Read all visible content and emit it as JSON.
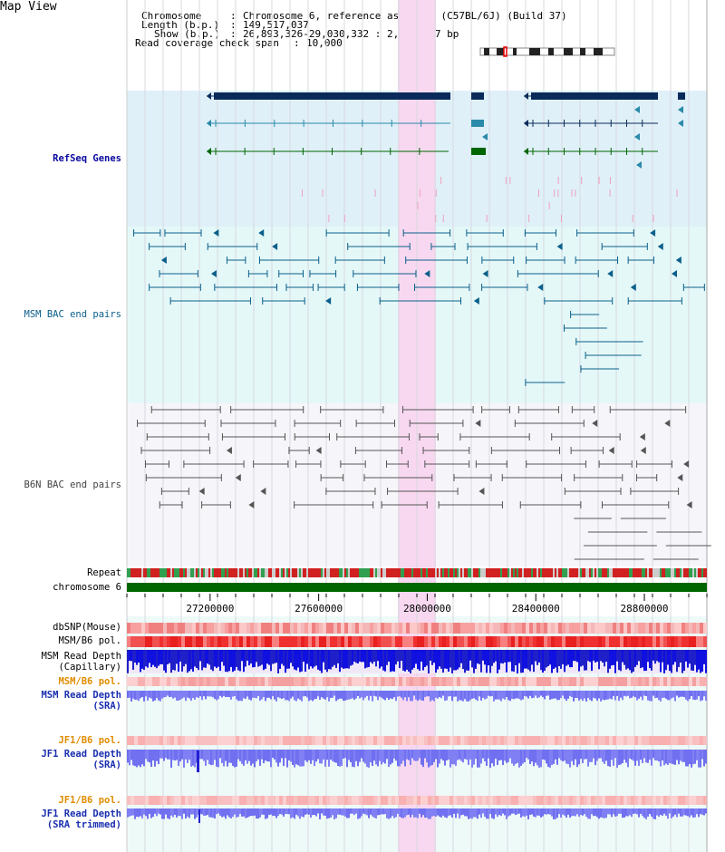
{
  "title": "Map View",
  "header": {
    "chromosome_key": "Chromosome",
    "chromosome_val": "Chromosome 6, reference assembly (C57BL/6J) (Build 37)",
    "length_key": "Length (b.p.)",
    "length_val": "149,517,037",
    "show_key": "Show (b.p.)",
    "show_val": "26,893,326-29,030,332 : 2,137,007 bp",
    "span_key": "Read coverage check span",
    "span_val": "10,000"
  },
  "tracks": {
    "refseq": "RefSeq Genes",
    "msm_bac": "MSM BAC end pairs",
    "b6n_bac": "B6N BAC end pairs",
    "repeat": "Repeat",
    "chromosome": "chromosome 6",
    "dbsnp": "dbSNP(Mouse)",
    "msm_b6_pol_1": "MSM/B6 pol.",
    "msm_read_depth_cap_1": "MSM Read Depth",
    "msm_read_depth_cap_2": "(Capillary)",
    "msm_b6_pol_2": "MSM/B6 pol.",
    "msm_read_depth_sra_1": "MSM Read Depth",
    "msm_read_depth_sra_2": "(SRA)",
    "jf1_b6_pol_1": "JF1/B6 pol.",
    "jf1_read_depth_1": "JF1 Read Depth",
    "jf1_read_depth_2": "(SRA)",
    "jf1_b6_pol_2": "JF1/B6 pol.",
    "jf1_trim_1": "JF1 Read Depth",
    "jf1_trim_2": "(SRA trimmed)"
  },
  "axis": {
    "ticks": [
      "27200000",
      "27600000",
      "28000000",
      "28400000",
      "28800000"
    ],
    "range_start": 26893326,
    "range_end": 29030332
  },
  "colors": {
    "refseq_bg": "#dff0f8",
    "msm_bg": "#e4f8f8",
    "b6n_bg": "#f6f6fa",
    "highlight": "#f8d8f0",
    "chromosome": "#006600",
    "gene_dark": "#0a2a5a",
    "gene_teal": "#2a8aaa",
    "gene_green": "#006600",
    "depth_blue": "#1010e0",
    "depth_light": "#7070f0",
    "pol_red": "#f04040"
  }
}
